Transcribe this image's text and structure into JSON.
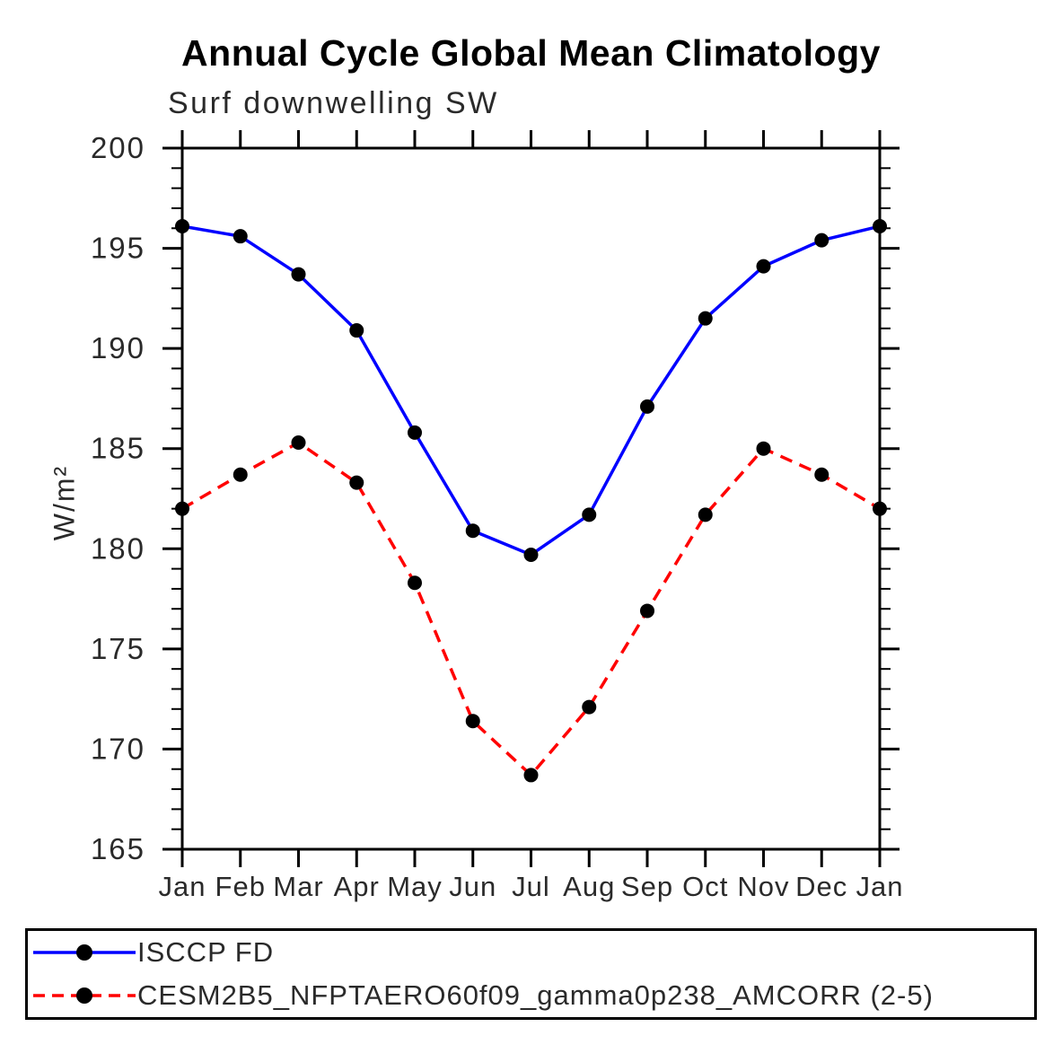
{
  "chart_data": {
    "type": "line",
    "title": "Annual Cycle Global Mean Climatology",
    "subtitle": "Surf downwelling SW",
    "ylabel": "W/m²",
    "categories": [
      "Jan",
      "Feb",
      "Mar",
      "Apr",
      "May",
      "Jun",
      "Jul",
      "Aug",
      "Sep",
      "Oct",
      "Nov",
      "Dec",
      "Jan"
    ],
    "y_axis": {
      "range": [
        165,
        200
      ],
      "major_step": 5,
      "minor_step": 1,
      "tick_labels": [
        "165",
        "170",
        "175",
        "180",
        "185",
        "190",
        "195",
        "200"
      ]
    },
    "grid": "off",
    "legend_position": "bottom",
    "axis_color": "#000000",
    "series": [
      {
        "name": "ISCCP FD",
        "color": "#0000ff",
        "line_style": "solid",
        "marker": "black-filled-circle",
        "values": [
          196.1,
          195.6,
          193.7,
          190.9,
          185.8,
          180.9,
          179.7,
          181.7,
          187.1,
          191.5,
          194.1,
          195.4,
          196.1
        ]
      },
      {
        "name": "CESM2B5_NFPTAERO60f09_gamma0p238_AMCORR (2-5)",
        "color": "#ff0000",
        "line_style": "dashed",
        "marker": "black-filled-circle",
        "values": [
          182.0,
          183.7,
          185.3,
          183.3,
          178.3,
          171.4,
          168.7,
          172.1,
          176.9,
          181.7,
          185.0,
          183.7,
          182.0
        ]
      }
    ]
  }
}
